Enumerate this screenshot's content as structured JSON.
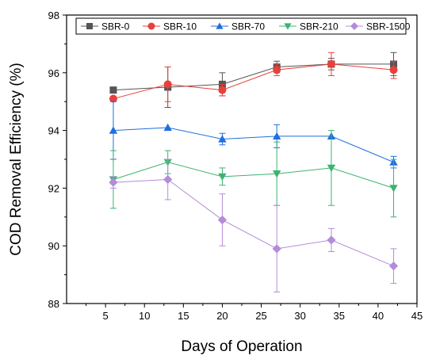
{
  "chart_data": {
    "type": "line",
    "title": "",
    "xlabel": "Days of Operation",
    "ylabel": "COD Removal Efficiency (%)",
    "xlim": [
      0,
      45
    ],
    "ylim": [
      88,
      98
    ],
    "xticks": [
      5,
      10,
      15,
      20,
      25,
      30,
      35,
      40,
      45
    ],
    "yticks": [
      88,
      90,
      92,
      94,
      96,
      98
    ],
    "grid": false,
    "legend_position": "top",
    "x": [
      6,
      13,
      20,
      27,
      34,
      42
    ],
    "series": [
      {
        "name": "SBR-0",
        "color": "#555555",
        "marker": "square",
        "values": [
          95.4,
          95.5,
          95.6,
          96.2,
          96.3,
          96.3
        ],
        "errors": [
          0.0,
          0.7,
          0.4,
          0.2,
          0.2,
          0.4
        ]
      },
      {
        "name": "SBR-10",
        "color": "#e8403c",
        "marker": "circle",
        "values": [
          95.1,
          95.6,
          95.4,
          96.1,
          96.3,
          96.1
        ],
        "errors": [
          0.0,
          0.6,
          0.2,
          0.2,
          0.4,
          0.3
        ]
      },
      {
        "name": "SBR-70",
        "color": "#1f6fdd",
        "marker": "triangle-up",
        "values": [
          94.0,
          94.1,
          93.7,
          93.8,
          93.8,
          92.9
        ],
        "errors": [
          1.0,
          0.0,
          0.2,
          0.4,
          0.0,
          0.2
        ]
      },
      {
        "name": "SBR-210",
        "color": "#3cb371",
        "marker": "triangle-down",
        "values": [
          92.3,
          92.9,
          92.4,
          92.5,
          92.7,
          92.0
        ],
        "errors": [
          1.0,
          0.4,
          0.3,
          1.1,
          1.3,
          1.0
        ]
      },
      {
        "name": "SBR-1500",
        "color": "#b48cd9",
        "marker": "diamond",
        "values": [
          92.2,
          92.3,
          90.9,
          89.9,
          90.2,
          89.3
        ],
        "errors": [
          0.2,
          0.7,
          0.9,
          1.5,
          0.4,
          0.6
        ]
      }
    ]
  }
}
